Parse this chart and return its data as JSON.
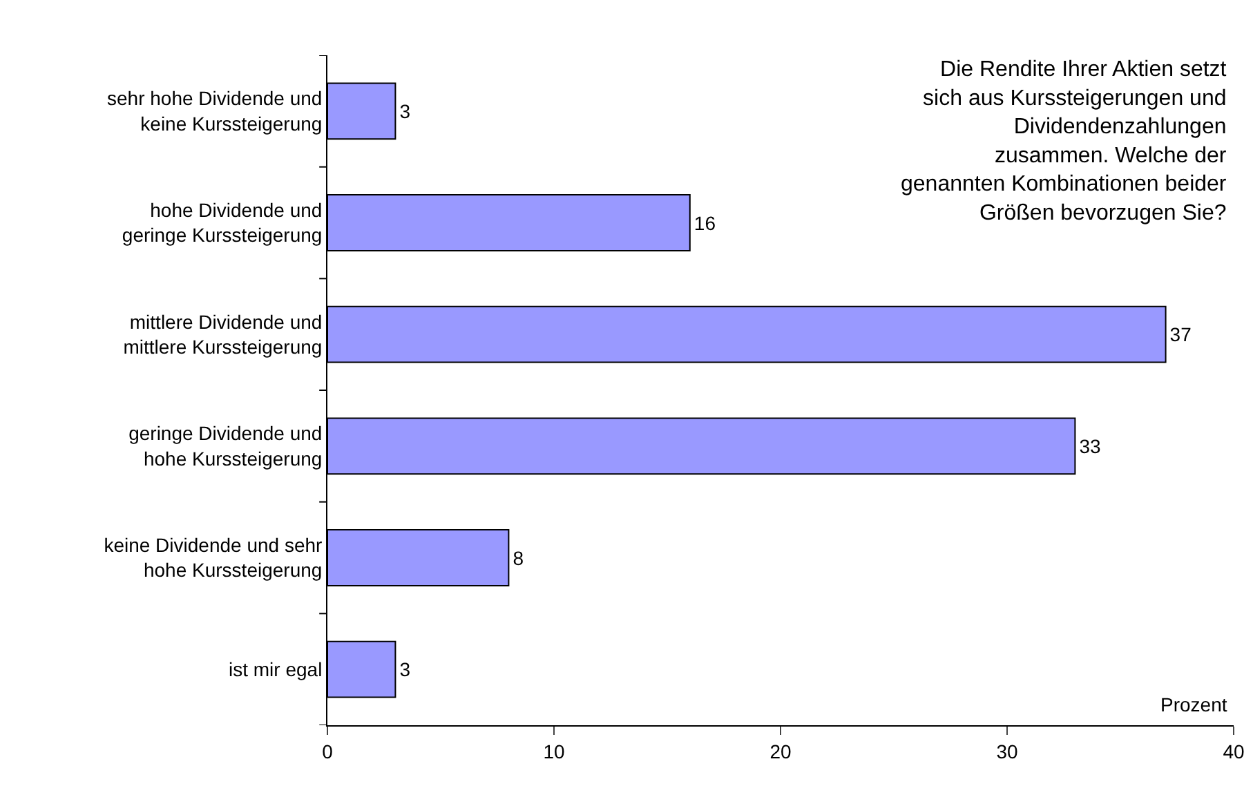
{
  "chart_data": {
    "type": "bar",
    "orientation": "horizontal",
    "categories": [
      "sehr hohe Dividende und\nkeine Kurssteigerung",
      "hohe Dividende und\ngeringe Kurssteigerung",
      "mittlere Dividende und\nmittlere Kurssteigerung",
      "geringe Dividende und\nhohe Kurssteigerung",
      "keine Dividende und sehr\nhohe Kurssteigerung",
      "ist mir egal"
    ],
    "values": [
      3,
      16,
      37,
      33,
      8,
      3
    ],
    "color": "#9999ff",
    "data_labels": true,
    "xlim": [
      0,
      40
    ],
    "xticks": [
      0,
      10,
      20,
      30,
      40
    ],
    "annotations": [
      "Die Rendite Ihrer Aktien setzt\nsich aus Kurssteigerungen und\nDividendenzahlungen\nzusammen. Welche der\ngenannten Kombinationen beider\nGrößen bevorzugen Sie?",
      "Prozent"
    ]
  }
}
